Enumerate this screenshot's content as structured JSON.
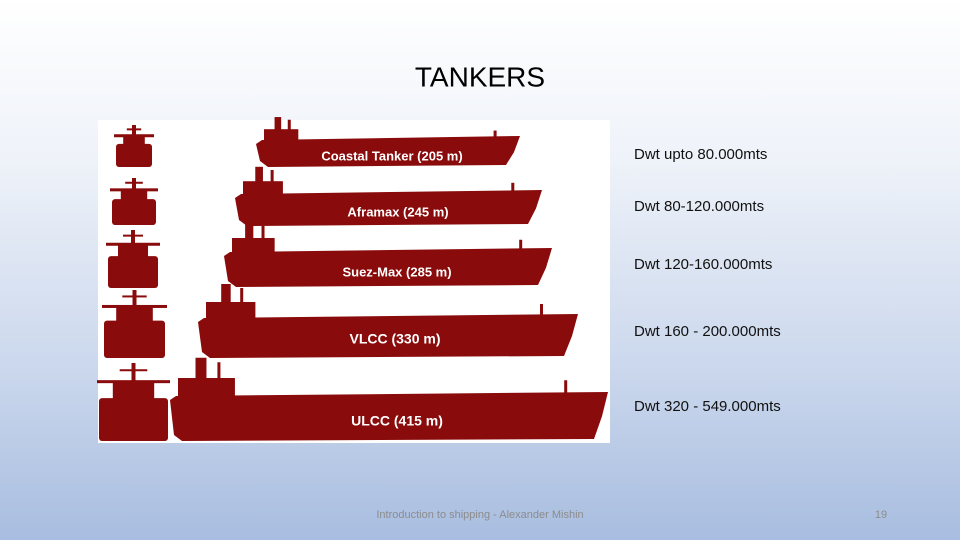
{
  "title": "TANKERS",
  "ships": [
    {
      "name": "Coastal Tanker (205 m)",
      "dwt": "Dwt upto 80.000mts"
    },
    {
      "name": "Aframax (245 m)",
      "dwt": "Dwt 80-120.000mts"
    },
    {
      "name": "Suez-Max (285 m)",
      "dwt": "Dwt 120-160.000mts"
    },
    {
      "name": "VLCC (330 m)",
      "dwt": "Dwt 160 - 200.000mts"
    },
    {
      "name": "ULCC (415 m)",
      "dwt": "Dwt 320 - 549.000mts"
    }
  ],
  "footer": "Introduction to shipping - Alexander Mishin",
  "page_number": "19"
}
